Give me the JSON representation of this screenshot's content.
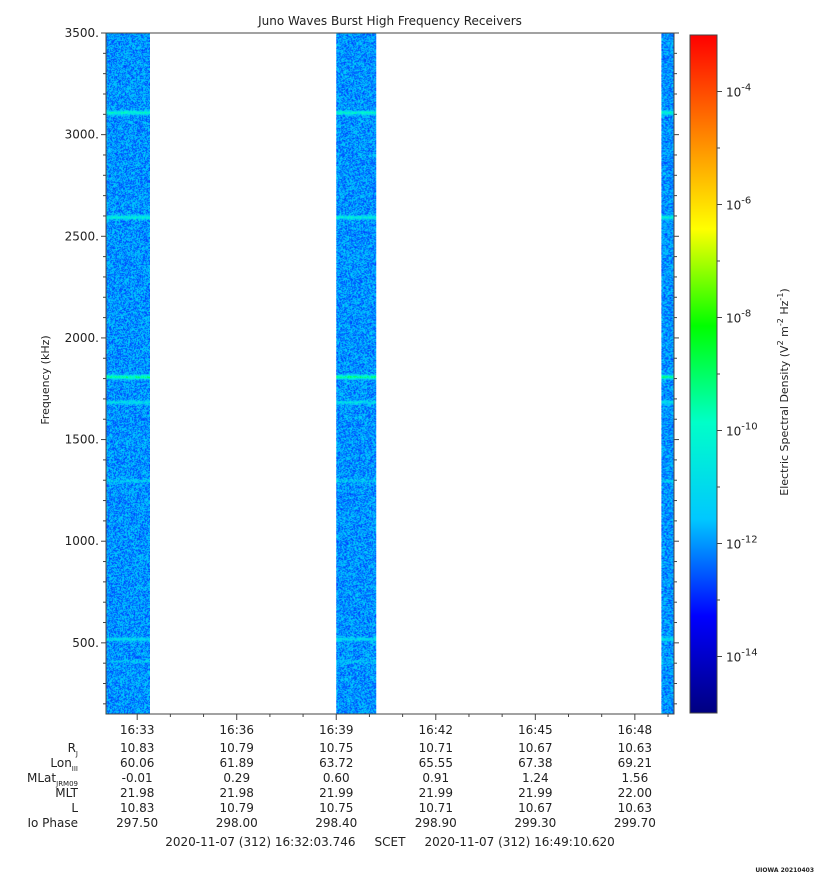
{
  "chart_data": {
    "type": "heatmap",
    "title": "Juno Waves Burst High Frequency Receivers",
    "ylabel": "Frequency (kHz)",
    "ylim": [
      150,
      3500
    ],
    "y_ticks": [
      "500.",
      "1000.",
      "1500.",
      "2000.",
      "2500.",
      "3000.",
      "3500."
    ],
    "y_tick_values": [
      500,
      1000,
      1500,
      2000,
      2500,
      3000,
      3500
    ],
    "x_ticks": [
      "16:33",
      "16:36",
      "16:39",
      "16:42",
      "16:45",
      "16:48"
    ],
    "x_tick_minutes": [
      33,
      36,
      39,
      42,
      45,
      48
    ],
    "x_range_minutes": [
      32.06,
      49.18
    ],
    "data_intervals_minutes": [
      [
        32.06,
        33.38
      ],
      [
        39.0,
        40.2
      ],
      [
        48.8,
        49.18
      ]
    ],
    "intervals_note": "",
    "spectral_lines_khz": [
      {
        "f": 3110,
        "strength": 0.7
      },
      {
        "f": 2595,
        "strength": 0.6
      },
      {
        "f": 1810,
        "strength": 1.0
      },
      {
        "f": 1685,
        "strength": 0.4
      },
      {
        "f": 1300,
        "strength": 0.25
      },
      {
        "f": 520,
        "strength": 0.4
      },
      {
        "f": 410,
        "strength": 0.2
      }
    ],
    "background_level": "10^-12",
    "colorbar": {
      "label": "Electric Spectral Density (V",
      "label_sup1": "2",
      "label_mid": " m",
      "label_sup2": "-2",
      "label_mid2": " Hz",
      "label_sup3": "-1",
      "label_end": ")",
      "range_exp": [
        -15,
        -3
      ],
      "tick_base": "10",
      "tick_exps": [
        "-14",
        "-12",
        "-10",
        "-8",
        "-6",
        "-4"
      ],
      "colors": [
        "#000080",
        "#0000ff",
        "#00c8ff",
        "#00ffc8",
        "#00ff00",
        "#ffff00",
        "#ff8000",
        "#ff0000"
      ]
    },
    "ephemeris": {
      "rows": [
        {
          "label": "R",
          "sub": "J",
          "values": [
            "10.83",
            "10.79",
            "10.75",
            "10.71",
            "10.67",
            "10.63"
          ]
        },
        {
          "label": "Lon",
          "sub": "III",
          "values": [
            "60.06",
            "61.89",
            "63.72",
            "65.55",
            "67.38",
            "69.21"
          ]
        },
        {
          "label": "MLat",
          "sub": "JRM09",
          "values": [
            "-0.01",
            "0.29",
            "0.60",
            "0.91",
            "1.24",
            "1.56"
          ]
        },
        {
          "label": "MLT",
          "sub": "",
          "values": [
            "21.98",
            "21.98",
            "21.99",
            "21.99",
            "21.99",
            "22.00"
          ]
        },
        {
          "label": "L",
          "sub": "",
          "values": [
            "10.83",
            "10.79",
            "10.75",
            "10.71",
            "10.67",
            "10.63"
          ]
        },
        {
          "label": "Io Phase",
          "sub": "",
          "values": [
            "297.50",
            "298.00",
            "298.40",
            "298.90",
            "299.30",
            "299.70"
          ]
        }
      ]
    },
    "time_range_text": "2020-11-07 (312) 16:32:03.746     SCET     2020-11-07 (312) 16:49:10.620",
    "footer_tag": "UIOWA 20210403"
  }
}
